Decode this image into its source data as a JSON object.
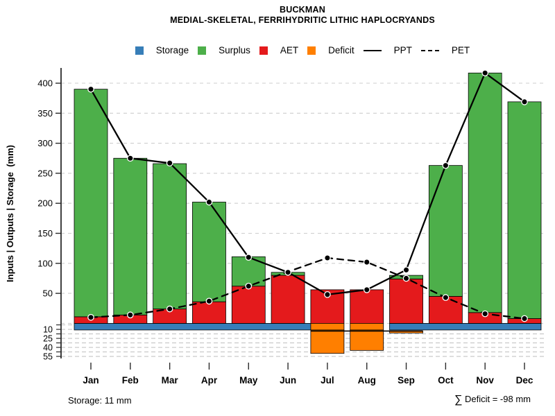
{
  "title": "BUCKMAN",
  "subtitle": "MEDIAL-SKELETAL, FERRIHYDRITIC LITHIC HAPLOCRYANDS",
  "y_axis_label": "Inputs | Outputs | Storage  (mm)",
  "legend": {
    "items": [
      {
        "label": "Storage",
        "swatch": "square",
        "color": "#377EB8"
      },
      {
        "label": "Surplus",
        "swatch": "square",
        "color": "#4DAF4A"
      },
      {
        "label": "AET",
        "swatch": "square",
        "color": "#E41A1C"
      },
      {
        "label": "Deficit",
        "swatch": "square",
        "color": "#FF7F00"
      },
      {
        "label": "PPT",
        "swatch": "line-solid",
        "color": "#000000"
      },
      {
        "label": "PET",
        "swatch": "line-dashed",
        "color": "#000000"
      }
    ]
  },
  "footer": {
    "storage_note": "Storage: 11 mm",
    "deficit_sigma": "∑",
    "deficit_note": " Deficit = -98 mm"
  },
  "colors": {
    "storage": "#377EB8",
    "surplus": "#4DAF4A",
    "aet": "#E41A1C",
    "deficit": "#FF7F00",
    "line": "#000000",
    "grid": "#cdcdcd",
    "lower_grid": "#c4c4c4"
  },
  "chart_data": {
    "type": "bar",
    "subtype": "stacked-bars-with-lines",
    "title": "BUCKMAN",
    "subtitle": "MEDIAL-SKELETAL, FERRIHYDRITIC LITHIC HAPLOCRYANDS",
    "ylabel": "Inputs | Outputs | Storage (mm)",
    "ylim": [
      -60,
      430
    ],
    "upper_ticks": [
      50,
      100,
      150,
      200,
      250,
      300,
      350,
      400
    ],
    "lower_ticks_below_zero": [
      10,
      25,
      40,
      55
    ],
    "grid": "dashed horizontal",
    "legend_position": "top center",
    "categories": [
      "Jan",
      "Feb",
      "Mar",
      "Apr",
      "May",
      "Jun",
      "Jul",
      "Aug",
      "Sep",
      "Oct",
      "Nov",
      "Dec"
    ],
    "series": [
      {
        "name": "Storage",
        "type": "bar-band-below-zero",
        "values": [
          11,
          11,
          11,
          11,
          11,
          11,
          0,
          0,
          11,
          11,
          11,
          11
        ]
      },
      {
        "name": "Surplus",
        "type": "bar",
        "values": [
          379,
          261,
          242,
          166,
          49,
          5,
          0,
          0,
          6,
          218,
          399,
          361
        ]
      },
      {
        "name": "AET",
        "type": "bar",
        "values": [
          11,
          14,
          24,
          36,
          62,
          80,
          56,
          56,
          74,
          45,
          18,
          8
        ]
      },
      {
        "name": "Deficit",
        "type": "bar-below-zero",
        "values": [
          0,
          0,
          0,
          0,
          0,
          0,
          -50,
          -45,
          -3,
          0,
          0,
          0
        ]
      },
      {
        "name": "PPT",
        "type": "line",
        "style": "solid",
        "values": [
          390,
          275,
          267,
          202,
          110,
          85,
          48,
          56,
          89,
          263,
          417,
          369
        ]
      },
      {
        "name": "PET",
        "type": "line",
        "style": "dashed",
        "values": [
          10,
          14,
          24,
          37,
          62,
          86,
          109,
          102,
          75,
          43,
          16,
          8
        ]
      }
    ],
    "annotations": {
      "storage_constant_mm": 11,
      "deficit_sum_mm": -98
    }
  }
}
